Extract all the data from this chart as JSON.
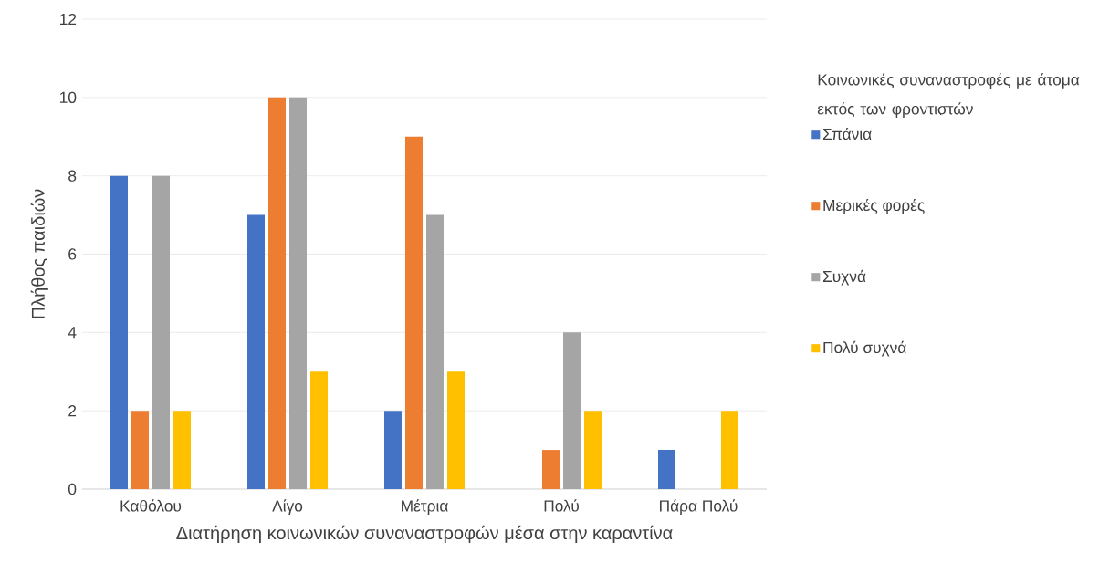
{
  "chart_data": {
    "type": "bar",
    "xlabel": "Διατήρηση κοινωνικών συναναστροφών μέσα στην καραντίνα",
    "ylabel": "Πλήθος παιδιών",
    "legend_title": "Κοινωνικές συναναστροφές με άτομα εκτός των φροντιστών",
    "categories": [
      "Καθόλου",
      "Λίγο",
      "Μέτρια",
      "Πολύ",
      "Πάρα Πολύ"
    ],
    "series": [
      {
        "name": "Σπάνια",
        "color": "#4472c4",
        "values": [
          8,
          7,
          2,
          0,
          1
        ]
      },
      {
        "name": "Μερικές φορές",
        "color": "#ed7d31",
        "values": [
          2,
          10,
          9,
          1,
          0
        ]
      },
      {
        "name": "Συχνά",
        "color": "#a5a5a5",
        "values": [
          8,
          10,
          7,
          4,
          0
        ]
      },
      {
        "name": "Πολύ συχνά",
        "color": "#ffc000",
        "values": [
          2,
          3,
          3,
          2,
          2
        ]
      }
    ],
    "ylim": [
      0,
      12
    ],
    "yticks": [
      0,
      2,
      4,
      6,
      8,
      10,
      12
    ],
    "grid": "y",
    "legend": "right"
  }
}
